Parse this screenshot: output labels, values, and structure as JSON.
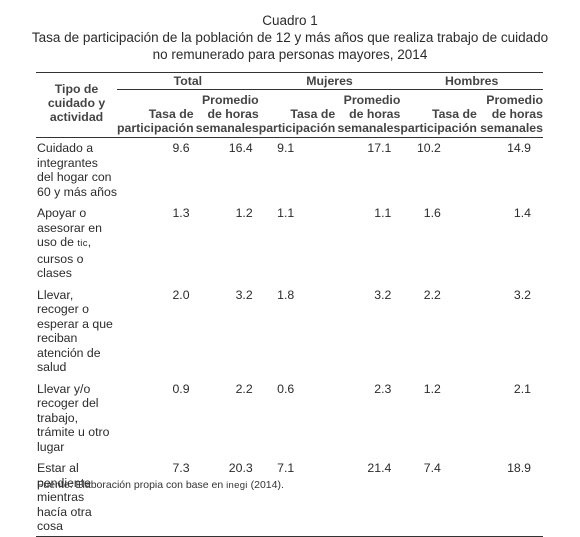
{
  "caption": {
    "number": "Cuadro 1",
    "title_line1": "Tasa de participación de la población de 12 y más años que realiza trabajo de cuidado",
    "title_line2": "no remunerado para personas mayores, 2014"
  },
  "table": {
    "stub_header": "Tipo de cuidado y actividad",
    "groups": [
      "Total",
      "Mujeres",
      "Hombres"
    ],
    "subheaders": {
      "rate": "Tasa de participación",
      "hours": "Promedio de horas semanales"
    },
    "rows": [
      {
        "label": "Cuidado a integrantes del hogar con 60 y más años",
        "values": [
          "9.6",
          "16.4",
          "9.1",
          "17.1",
          "10.2",
          "14.9"
        ]
      },
      {
        "label_pre": "Apoyar o asesorar en uso de ",
        "label_sc": "tic",
        "label_post": ", cursos o clases",
        "values": [
          "1.3",
          "1.2",
          "1.1",
          "1.1",
          "1.6",
          "1.4"
        ]
      },
      {
        "label": "Llevar, recoger o esperar a que reciban atención de salud",
        "values": [
          "2.0",
          "3.2",
          "1.8",
          "3.2",
          "2.2",
          "3.2"
        ]
      },
      {
        "label": "Llevar y/o recoger del trabajo, trámite u otro lugar",
        "values": [
          "0.9",
          "2.2",
          "0.6",
          "2.3",
          "1.2",
          "2.1"
        ]
      },
      {
        "label": "Estar al pendiente mientras hacía otra cosa",
        "values": [
          "7.3",
          "20.3",
          "7.1",
          "21.4",
          "7.4",
          "18.9"
        ]
      }
    ]
  },
  "footer": {
    "source_pre": "Fuente: Elaboración propia con base en ",
    "source_sc": "inegi",
    "source_post": " (2014)."
  }
}
